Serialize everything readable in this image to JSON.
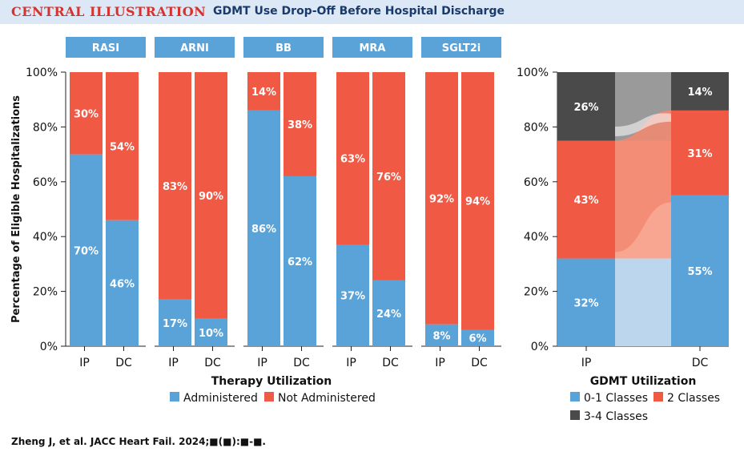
{
  "header": {
    "brand": "CENTRAL ILLUSTRATION",
    "title": "GDMT Use Drop-Off Before Hospital Discharge"
  },
  "colors": {
    "administered": "#5aa3d9",
    "not_administered": "#f05a45",
    "class_0_1": "#5aa3d9",
    "class_2": "#f05a45",
    "class_3_4": "#4a4a4a",
    "panel_header": "#5aa3d9"
  },
  "chart_data": [
    {
      "type": "bar",
      "stacked": true,
      "panels": [
        "RASI",
        "ARNI",
        "BB",
        "MRA",
        "SGLT2i"
      ],
      "categories": [
        "IP",
        "DC"
      ],
      "series": [
        {
          "name": "Administered",
          "values": [
            [
              70,
              46
            ],
            [
              17,
              10
            ],
            [
              86,
              62
            ],
            [
              37,
              24
            ],
            [
              8,
              6
            ]
          ]
        },
        {
          "name": "Not Administered",
          "values": [
            [
              30,
              54
            ],
            [
              83,
              90
            ],
            [
              14,
              38
            ],
            [
              63,
              76
            ],
            [
              92,
              94
            ]
          ]
        }
      ],
      "xlabel": "Therapy Utilization",
      "ylabel": "Percentage of Eligible Hospitalizations",
      "ylim": [
        0,
        100
      ],
      "yticks": [
        "0%",
        "20%",
        "40%",
        "60%",
        "80%",
        "100%"
      ],
      "legend": [
        "Administered",
        "Not Administered"
      ]
    },
    {
      "type": "bar",
      "stacked": true,
      "flow": "alluvial",
      "categories": [
        "IP",
        "DC"
      ],
      "series": [
        {
          "name": "0-1 Classes",
          "values": [
            32,
            55
          ]
        },
        {
          "name": "2 Classes",
          "values": [
            43,
            31
          ]
        },
        {
          "name": "3-4 Classes",
          "values": [
            26,
            14
          ]
        }
      ],
      "xlabel": "GDMT Utilization",
      "ylim": [
        0,
        100
      ],
      "yticks": [
        "0%",
        "20%",
        "40%",
        "60%",
        "80%",
        "100%"
      ],
      "legend": [
        "0-1 Classes",
        "2 Classes",
        "3-4 Classes"
      ]
    }
  ],
  "citation": "Zheng J, et al. JACC Heart Fail. 2024;■(■):■-■."
}
